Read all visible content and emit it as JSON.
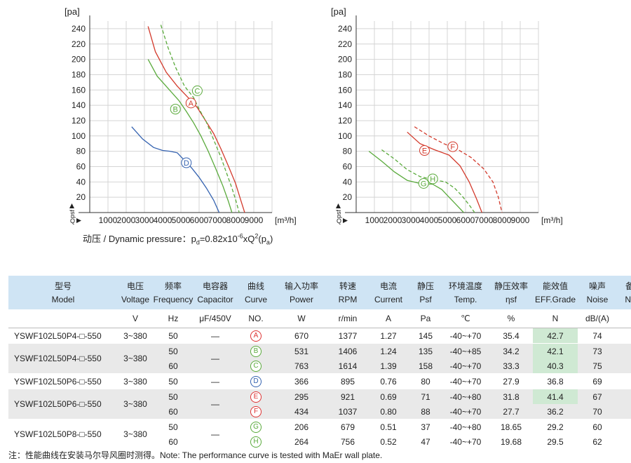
{
  "chart_data": [
    {
      "type": "line",
      "y_unit": "[pa]",
      "x_unit": "[m³/h]",
      "y_axis_label": "psf",
      "x_axis_label": "Q",
      "xlim": [
        0,
        10000
      ],
      "ylim": [
        0,
        250
      ],
      "x_ticks": [
        "1000",
        "2000",
        "3000",
        "4000",
        "5000",
        "6000",
        "7000",
        "8000",
        "9000"
      ],
      "y_ticks": [
        "20",
        "40",
        "60",
        "80",
        "100",
        "120",
        "140",
        "160",
        "180",
        "200",
        "220",
        "240"
      ],
      "grid": true,
      "series": [
        {
          "name": "A",
          "color": "#d33a2c",
          "dash": false,
          "x": [
            3200,
            3600,
            4200,
            4800,
            5400,
            5900,
            6300,
            6800,
            7200,
            7600,
            8000,
            8300,
            8500
          ],
          "y": [
            243,
            210,
            183,
            165,
            150,
            137,
            122,
            103,
            83,
            61,
            38,
            15,
            0
          ]
        },
        {
          "name": "C",
          "color": "#5aaa3c",
          "dash": true,
          "x": [
            3900,
            4300,
            4700,
            5200,
            5700,
            6000,
            6400,
            6800,
            7200,
            7500,
            7800,
            8000,
            8200
          ],
          "y": [
            245,
            215,
            190,
            165,
            150,
            135,
            118,
            95,
            72,
            52,
            32,
            17,
            0
          ]
        },
        {
          "name": "B",
          "color": "#5aaa3c",
          "dash": false,
          "x": [
            3200,
            3700,
            4300,
            4900,
            5300,
            5700,
            6100,
            6500,
            6900,
            7300,
            7600,
            7800
          ],
          "y": [
            200,
            178,
            162,
            146,
            132,
            117,
            100,
            80,
            58,
            35,
            15,
            0
          ]
        },
        {
          "name": "D",
          "color": "#3462b0",
          "dash": false,
          "x": [
            2300,
            2900,
            3500,
            4000,
            4400,
            4800,
            5200,
            5600,
            6000,
            6400,
            6800,
            7100
          ],
          "y": [
            112,
            96,
            85,
            81,
            80,
            78,
            68,
            58,
            46,
            32,
            16,
            0
          ]
        }
      ],
      "labels": [
        {
          "text": "A",
          "color": "#d33a2c",
          "x": 5550,
          "y": 143
        },
        {
          "text": "C",
          "color": "#5aaa3c",
          "x": 5900,
          "y": 159
        },
        {
          "text": "B",
          "color": "#5aaa3c",
          "x": 4700,
          "y": 135
        },
        {
          "text": "D",
          "color": "#3462b0",
          "x": 5300,
          "y": 65
        }
      ]
    },
    {
      "type": "line",
      "y_unit": "[pa]",
      "x_unit": "[m³/h]",
      "y_axis_label": "psf",
      "x_axis_label": "Q",
      "xlim": [
        0,
        10000
      ],
      "ylim": [
        0,
        250
      ],
      "x_ticks": [
        "1000",
        "2000",
        "3000",
        "4000",
        "5000",
        "6000",
        "7000",
        "8000",
        "9000"
      ],
      "y_ticks": [
        "20",
        "40",
        "60",
        "80",
        "100",
        "120",
        "140",
        "160",
        "180",
        "200",
        "220",
        "240"
      ],
      "grid": true,
      "series": [
        {
          "name": "E",
          "color": "#d33a2c",
          "dash": false,
          "x": [
            2800,
            3500,
            4300,
            5100,
            5700,
            6200,
            6600,
            6900
          ],
          "y": [
            105,
            90,
            82,
            75,
            61,
            40,
            18,
            0
          ]
        },
        {
          "name": "F",
          "color": "#d33a2c",
          "dash": true,
          "x": [
            3200,
            4000,
            4800,
            5600,
            6300,
            7000,
            7500,
            7800,
            8000
          ],
          "y": [
            112,
            100,
            90,
            82,
            72,
            57,
            40,
            20,
            0
          ]
        },
        {
          "name": "G",
          "color": "#5aaa3c",
          "dash": false,
          "x": [
            700,
            1400,
            2100,
            2800,
            3500,
            4200,
            4700,
            5100,
            5500,
            5900
          ],
          "y": [
            80,
            67,
            53,
            42,
            38,
            37,
            30,
            20,
            10,
            0
          ]
        },
        {
          "name": "H",
          "color": "#5aaa3c",
          "dash": true,
          "x": [
            1400,
            2100,
            2800,
            3500,
            4200,
            4900,
            5400,
            5800,
            6200,
            6500
          ],
          "y": [
            82,
            70,
            56,
            47,
            43,
            40,
            32,
            22,
            10,
            0
          ]
        }
      ],
      "labels": [
        {
          "text": "E",
          "color": "#d33a2c",
          "x": 3750,
          "y": 81
        },
        {
          "text": "F",
          "color": "#d33a2c",
          "x": 5300,
          "y": 86
        },
        {
          "text": "G",
          "color": "#5aaa3c",
          "x": 3700,
          "y": 38
        },
        {
          "text": "H",
          "color": "#5aaa3c",
          "x": 4200,
          "y": 44
        }
      ]
    }
  ],
  "dynamic_pressure": {
    "prefix": "动压 / Dynamic pressure：p",
    "sub1": "d",
    "mid": "=0.82x10",
    "sup": "-6",
    "mid2": "xQ",
    "sup2": "2",
    "mid3": "(p",
    "sub2": "a",
    "suffix": ")"
  },
  "table": {
    "headers_cn": [
      "型号",
      "电压",
      "频率",
      "电容器",
      "曲线",
      "输入功率",
      "转速",
      "电流",
      "静压",
      "环境温度",
      "静压效率",
      "能效值",
      "噪声",
      "备注"
    ],
    "headers_en": [
      "Model",
      "Voltage",
      "Frequency",
      "Capacitor",
      "Curve",
      "Power",
      "RPM",
      "Current",
      "Psf",
      "Temp.",
      "ηsf",
      "EFF.Grade",
      "Noise",
      "Note"
    ],
    "units": [
      "",
      "V",
      "Hz",
      "μF/450V",
      "NO.",
      "W",
      "r/min",
      "A",
      "Pa",
      "℃",
      "%",
      "N",
      "dB/(A)",
      ""
    ],
    "groups": [
      {
        "model": "YSWF102L50P4-□-550",
        "voltage": "3~380",
        "capacitor": "—",
        "rows": [
          {
            "freq": "50",
            "curve": "A",
            "curve_color": "red",
            "power": "670",
            "rpm": "1377",
            "current": "1.27",
            "psf": "145",
            "temp": "-40~+70",
            "eff": "35.4",
            "grade": "42.7",
            "grade_hl": true,
            "noise": "74"
          }
        ]
      },
      {
        "model": "YSWF102L50P4-□-550",
        "voltage": "3~380",
        "capacitor": "—",
        "rows": [
          {
            "freq": "50",
            "curve": "B",
            "curve_color": "green",
            "power": "531",
            "rpm": "1406",
            "current": "1.24",
            "psf": "135",
            "temp": "-40~+85",
            "eff": "34.2",
            "grade": "42.1",
            "grade_hl": true,
            "noise": "73"
          },
          {
            "freq": "60",
            "curve": "C",
            "curve_color": "green",
            "power": "763",
            "rpm": "1614",
            "current": "1.39",
            "psf": "158",
            "temp": "-40~+70",
            "eff": "33.3",
            "grade": "40.3",
            "grade_hl": true,
            "noise": "75"
          }
        ]
      },
      {
        "model": "YSWF102L50P6-□-550",
        "voltage": "3~380",
        "capacitor": "—",
        "rows": [
          {
            "freq": "50",
            "curve": "D",
            "curve_color": "blue",
            "power": "366",
            "rpm": "895",
            "current": "0.76",
            "psf": "80",
            "temp": "-40~+70",
            "eff": "27.9",
            "grade": "36.8",
            "grade_hl": false,
            "noise": "69"
          }
        ]
      },
      {
        "model": "YSWF102L50P6-□-550",
        "voltage": "3~380",
        "capacitor": "—",
        "rows": [
          {
            "freq": "50",
            "curve": "E",
            "curve_color": "red",
            "power": "295",
            "rpm": "921",
            "current": "0.69",
            "psf": "71",
            "temp": "-40~+80",
            "eff": "31.8",
            "grade": "41.4",
            "grade_hl": true,
            "noise": "67"
          },
          {
            "freq": "60",
            "curve": "F",
            "curve_color": "red",
            "power": "434",
            "rpm": "1037",
            "current": "0.80",
            "psf": "88",
            "temp": "-40~+70",
            "eff": "27.7",
            "grade": "36.2",
            "grade_hl": false,
            "noise": "70"
          }
        ]
      },
      {
        "model": "YSWF102L50P8-□-550",
        "voltage": "3~380",
        "capacitor": "—",
        "rows": [
          {
            "freq": "50",
            "curve": "G",
            "curve_color": "green",
            "power": "206",
            "rpm": "679",
            "current": "0.51",
            "psf": "37",
            "temp": "-40~+80",
            "eff": "18.65",
            "grade": "29.2",
            "grade_hl": false,
            "noise": "60"
          },
          {
            "freq": "60",
            "curve": "H",
            "curve_color": "green",
            "power": "264",
            "rpm": "756",
            "current": "0.52",
            "psf": "47",
            "temp": "-40~+70",
            "eff": "19.68",
            "grade": "29.5",
            "grade_hl": false,
            "noise": "62"
          }
        ]
      }
    ]
  },
  "footnote": "注：性能曲线在安装马尔导风圈时测得。Note: The performance curve is tested with MaEr wall plate."
}
